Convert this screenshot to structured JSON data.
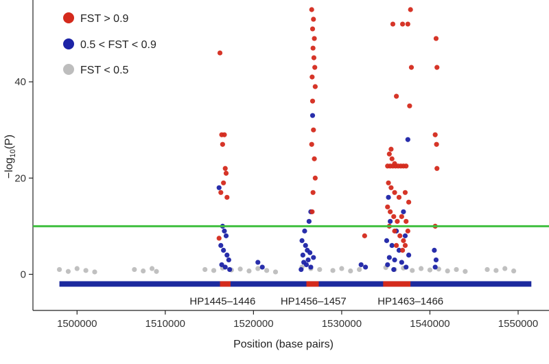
{
  "chart_data": {
    "type": "scatter",
    "title": "",
    "xlabel": "Position (base pairs)",
    "ylabel_main": "−log",
    "ylabel_sub": "10",
    "ylabel_tail": "(P)",
    "xlim": [
      1495000,
      1553500
    ],
    "ylim": [
      -7.5,
      57
    ],
    "xticks": [
      1500000,
      1510000,
      1520000,
      1530000,
      1540000,
      1550000
    ],
    "xtick_labels": [
      "1500000",
      "1510000",
      "1520000",
      "1530000",
      "1540000",
      "1550000"
    ],
    "yticks": [
      0,
      20,
      40
    ],
    "ytick_labels": [
      "0",
      "20",
      "40"
    ],
    "threshold": 10,
    "threshold_color": "#3fbf3f",
    "legend_position": "top-left",
    "series": [
      {
        "name": "FST > 0.9",
        "color": "#d42a1c",
        "points": [
          [
            1516200,
            46
          ],
          [
            1516400,
            29
          ],
          [
            1516700,
            29
          ],
          [
            1516500,
            27
          ],
          [
            1516800,
            22
          ],
          [
            1516900,
            21
          ],
          [
            1516600,
            19
          ],
          [
            1516300,
            17
          ],
          [
            1517000,
            16
          ],
          [
            1516100,
            7.5
          ],
          [
            1526600,
            55
          ],
          [
            1526800,
            53
          ],
          [
            1526700,
            51
          ],
          [
            1526900,
            49
          ],
          [
            1526750,
            47
          ],
          [
            1526850,
            45
          ],
          [
            1526950,
            43
          ],
          [
            1526650,
            41
          ],
          [
            1527000,
            39
          ],
          [
            1526700,
            36
          ],
          [
            1526800,
            30
          ],
          [
            1526600,
            27
          ],
          [
            1526900,
            24
          ],
          [
            1527000,
            20
          ],
          [
            1526750,
            17
          ],
          [
            1526650,
            13
          ],
          [
            1535800,
            52
          ],
          [
            1536900,
            52
          ],
          [
            1537500,
            52
          ],
          [
            1537800,
            55
          ],
          [
            1537900,
            43
          ],
          [
            1537700,
            35
          ],
          [
            1536200,
            37
          ],
          [
            1535600,
            26
          ],
          [
            1535400,
            25
          ],
          [
            1535700,
            24
          ],
          [
            1536000,
            23
          ],
          [
            1535200,
            22.5
          ],
          [
            1535500,
            22.5
          ],
          [
            1535800,
            22.5
          ],
          [
            1536100,
            22.5
          ],
          [
            1536400,
            22.5
          ],
          [
            1536700,
            22.5
          ],
          [
            1537000,
            22.5
          ],
          [
            1537300,
            22.5
          ],
          [
            1535300,
            19
          ],
          [
            1535600,
            18
          ],
          [
            1536000,
            17
          ],
          [
            1536500,
            16
          ],
          [
            1537200,
            17
          ],
          [
            1537600,
            15
          ],
          [
            1535200,
            14
          ],
          [
            1535500,
            13
          ],
          [
            1535900,
            12
          ],
          [
            1536300,
            11
          ],
          [
            1536800,
            12
          ],
          [
            1537300,
            11
          ],
          [
            1535400,
            10
          ],
          [
            1536000,
            9
          ],
          [
            1536600,
            8
          ],
          [
            1537000,
            7
          ],
          [
            1537500,
            9
          ],
          [
            1536200,
            6
          ],
          [
            1536900,
            5
          ],
          [
            1537200,
            6
          ],
          [
            1540700,
            49
          ],
          [
            1540800,
            43
          ],
          [
            1540600,
            29
          ],
          [
            1540750,
            27
          ],
          [
            1540800,
            22
          ],
          [
            1540600,
            10
          ],
          [
            1532600,
            8
          ]
        ]
      },
      {
        "name": "0.5 < FST < 0.9",
        "color": "#1c23a6",
        "points": [
          [
            1516100,
            18
          ],
          [
            1516500,
            10
          ],
          [
            1516700,
            9
          ],
          [
            1516900,
            8
          ],
          [
            1516300,
            6
          ],
          [
            1516600,
            5
          ],
          [
            1517000,
            4
          ],
          [
            1517200,
            3
          ],
          [
            1516400,
            2
          ],
          [
            1516800,
            1.5
          ],
          [
            1517300,
            1
          ],
          [
            1520500,
            2.5
          ],
          [
            1521000,
            1.5
          ],
          [
            1526700,
            33
          ],
          [
            1526500,
            13
          ],
          [
            1526300,
            11
          ],
          [
            1525800,
            9
          ],
          [
            1525500,
            7
          ],
          [
            1525900,
            6
          ],
          [
            1526100,
            5
          ],
          [
            1526400,
            4.5
          ],
          [
            1525600,
            4
          ],
          [
            1526800,
            3.5
          ],
          [
            1526200,
            3
          ],
          [
            1525700,
            2.5
          ],
          [
            1526000,
            2
          ],
          [
            1526500,
            1.5
          ],
          [
            1525400,
            1
          ],
          [
            1537500,
            28
          ],
          [
            1535300,
            16
          ],
          [
            1537000,
            13
          ],
          [
            1535500,
            11
          ],
          [
            1536200,
            9
          ],
          [
            1537200,
            8
          ],
          [
            1535100,
            7
          ],
          [
            1535700,
            6
          ],
          [
            1536500,
            5
          ],
          [
            1537600,
            4
          ],
          [
            1535400,
            3.5
          ],
          [
            1536000,
            3
          ],
          [
            1536800,
            2.5
          ],
          [
            1535200,
            2
          ],
          [
            1537300,
            1.5
          ],
          [
            1535900,
            1
          ],
          [
            1532200,
            2
          ],
          [
            1532700,
            1.5
          ],
          [
            1540500,
            5
          ],
          [
            1540700,
            3
          ],
          [
            1540600,
            1.5
          ]
        ]
      },
      {
        "name": "FST < 0.5",
        "color": "#bdbdbd",
        "points": [
          [
            1498000,
            1
          ],
          [
            1499000,
            0.6
          ],
          [
            1500000,
            1.2
          ],
          [
            1501000,
            0.8
          ],
          [
            1502000,
            0.5
          ],
          [
            1506500,
            1
          ],
          [
            1507500,
            0.7
          ],
          [
            1508500,
            1.2
          ],
          [
            1509000,
            0.6
          ],
          [
            1514500,
            1
          ],
          [
            1515500,
            0.8
          ],
          [
            1516500,
            1.3
          ],
          [
            1517500,
            0.9
          ],
          [
            1518500,
            1.1
          ],
          [
            1519500,
            0.7
          ],
          [
            1520500,
            1.2
          ],
          [
            1521500,
            0.8
          ],
          [
            1522500,
            0.5
          ],
          [
            1525500,
            1.5
          ],
          [
            1526500,
            1.2
          ],
          [
            1527500,
            1
          ],
          [
            1529000,
            0.8
          ],
          [
            1530000,
            1.2
          ],
          [
            1531000,
            0.7
          ],
          [
            1532000,
            1
          ],
          [
            1535000,
            1.4
          ],
          [
            1536000,
            1
          ],
          [
            1537000,
            1.3
          ],
          [
            1538000,
            0.8
          ],
          [
            1539000,
            1.2
          ],
          [
            1540000,
            0.9
          ],
          [
            1541000,
            1.1
          ],
          [
            1542000,
            0.7
          ],
          [
            1543000,
            1
          ],
          [
            1544000,
            0.6
          ],
          [
            1546500,
            1
          ],
          [
            1547500,
            0.8
          ],
          [
            1548500,
            1.2
          ],
          [
            1549500,
            0.7
          ]
        ]
      }
    ],
    "gene_track": {
      "y": -2,
      "start": 1498000,
      "end": 1551500,
      "base_color": "#1c2a9e",
      "highlight_color": "#d42a1c",
      "highlights": [
        [
          1516200,
          1517400
        ],
        [
          1526000,
          1527400
        ],
        [
          1534700,
          1537800
        ]
      ]
    },
    "gene_labels": [
      {
        "text": "HP1445–1446",
        "x": 1516500
      },
      {
        "text": "HP1456–1457",
        "x": 1526800
      },
      {
        "text": "HP1463–1466",
        "x": 1537800
      }
    ]
  }
}
